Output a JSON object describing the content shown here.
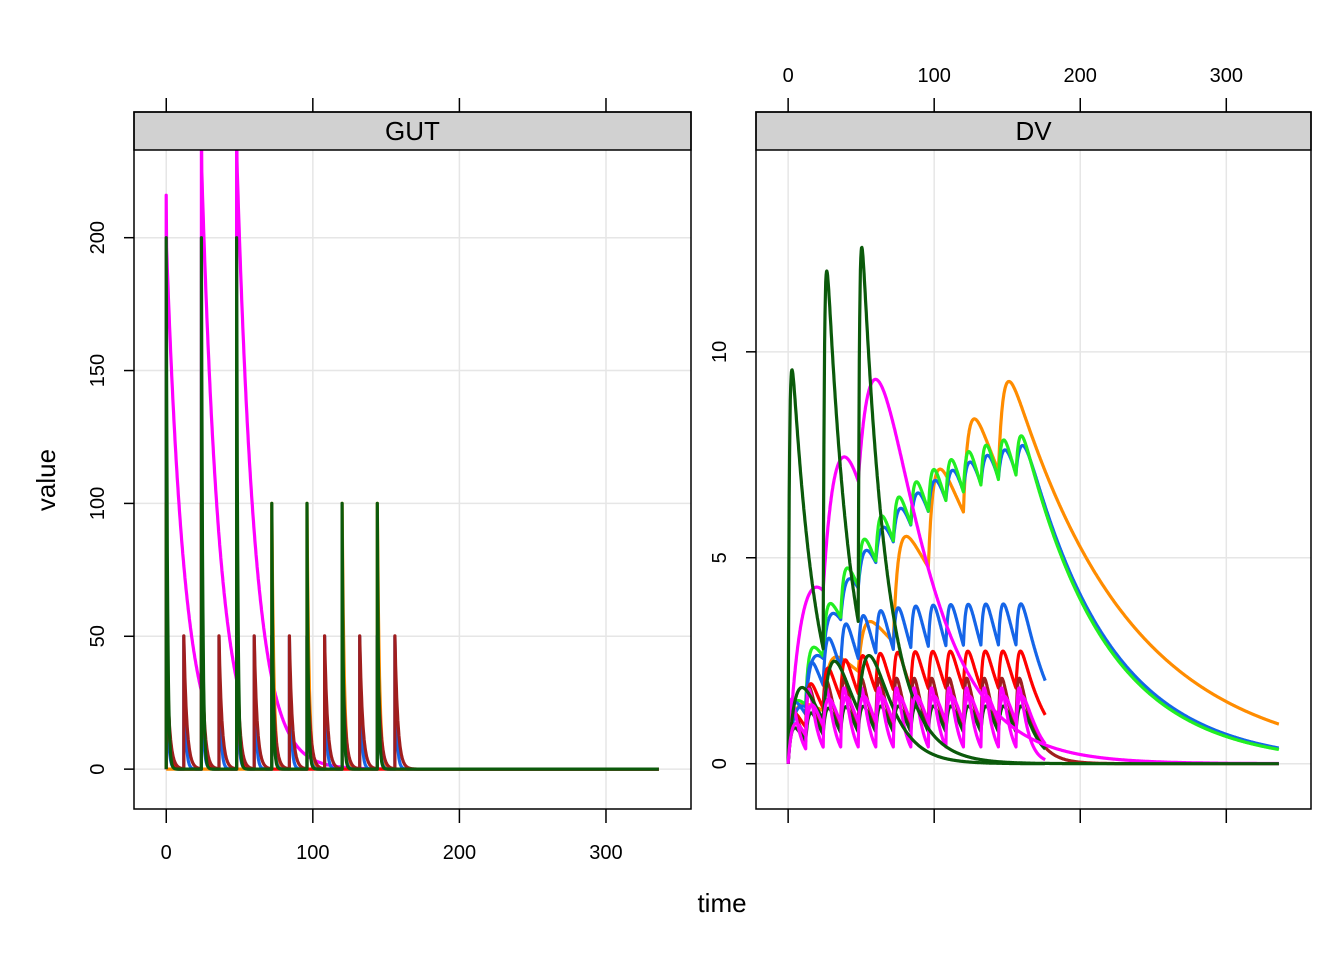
{
  "chart_data": {
    "type": "line",
    "xlabel": "time",
    "ylabel": "value",
    "series_colors": {
      "magenta": "#ff00ff",
      "dark_green": "#0b5a0b",
      "blue": "#1565e8",
      "orange": "#ff8c00",
      "red": "#ff0000",
      "green": "#22ee22",
      "brown": "#a01e1e"
    },
    "panels": [
      {
        "strip_label": "GUT",
        "xlim": [
          -22,
          358
        ],
        "ylim": [
          -15,
          233
        ],
        "x_ticks": [
          0,
          100,
          200,
          300
        ],
        "x_tick_labels": [
          "0",
          "100",
          "200",
          "300"
        ],
        "y_ticks": [
          0,
          50,
          100,
          150,
          200
        ],
        "y_tick_labels": [
          "0",
          "50",
          "100",
          "150",
          "200"
        ],
        "series": [
          {
            "color_key": "magenta",
            "kind": "gut",
            "dose_times": [
              0,
              24,
              48
            ],
            "amount": 200,
            "ka": 0.08,
            "peak_overshoot": 16,
            "end": 336
          },
          {
            "color_key": "orange",
            "kind": "gut",
            "dose_times": [
              72,
              96,
              120,
              144
            ],
            "amount": 100,
            "ka": 0.7,
            "end": 336
          },
          {
            "color_key": "blue",
            "kind": "gut",
            "dose_times": [
              0,
              12,
              24,
              36,
              48,
              60,
              72,
              84,
              96,
              108,
              120,
              132,
              144,
              156
            ],
            "amount": 50,
            "ka": 0.9,
            "end": 336
          },
          {
            "color_key": "red",
            "kind": "gut",
            "dose_times": [
              0,
              24,
              48
            ],
            "amount": 100,
            "ka": 0.9,
            "end": 336
          },
          {
            "color_key": "brown",
            "kind": "gut",
            "dose_times": [
              0,
              12,
              24,
              36,
              48,
              60,
              72,
              84,
              96,
              108,
              120,
              132,
              144,
              156
            ],
            "amount": 50,
            "ka": 0.5,
            "end": 336
          },
          {
            "color_key": "dark_green",
            "kind": "gut",
            "dose_times": [
              0,
              24,
              48,
              72,
              96,
              120,
              144
            ],
            "amount": [
              200,
              200,
              200,
              100,
              100,
              100,
              100
            ],
            "ka": 1.2,
            "end": 336
          }
        ]
      },
      {
        "strip_label": "DV",
        "xlim": [
          -22,
          358
        ],
        "ylim": [
          -1.1,
          14.9
        ],
        "x_ticks": [
          0,
          100,
          200,
          300
        ],
        "x_tick_labels": [
          "0",
          "100",
          "200",
          "300"
        ],
        "y_ticks": [
          0,
          5,
          10
        ],
        "y_tick_labels": [
          "0",
          "5",
          "10"
        ],
        "series": [
          {
            "color_key": "orange",
            "kind": "pk",
            "dose_times": [
              0,
              24,
              48,
              72,
              96,
              120,
              144
            ],
            "amount": [
              50,
              50,
              50,
              100,
              100,
              100,
              100
            ],
            "ka": 0.3,
            "ke": 0.0125,
            "V": 30,
            "end": 336
          },
          {
            "color_key": "blue",
            "kind": "pk",
            "dose_times": [
              0,
              12,
              24,
              36,
              48,
              60,
              72,
              84,
              96,
              108,
              120,
              132,
              144,
              156
            ],
            "amount": 45,
            "ka": 0.3,
            "ke": 0.0175,
            "V": 27,
            "end": 336
          },
          {
            "color_key": "green",
            "kind": "pk",
            "dose_times": [
              0,
              12,
              24,
              36,
              48,
              60,
              72,
              84,
              96,
              108,
              120,
              132,
              144,
              156
            ],
            "amount": 45,
            "ka": 0.5,
            "ke": 0.018,
            "V": 26,
            "end": 336
          },
          {
            "color_key": "blue",
            "kind": "pk",
            "dose_times": [
              0,
              12,
              24,
              36,
              48,
              60,
              72,
              84,
              96,
              108,
              120,
              132,
              144,
              156
            ],
            "amount": 45,
            "ka": 0.5,
            "ke": 0.045,
            "V": 24,
            "end": 176
          },
          {
            "color_key": "red",
            "kind": "pk",
            "dose_times": [
              0,
              12,
              24,
              36,
              48,
              60,
              72,
              84,
              96,
              108,
              120,
              132,
              144,
              156
            ],
            "amount": 45,
            "ka": 0.6,
            "ke": 0.055,
            "V": 29,
            "end": 176
          },
          {
            "color_key": "brown",
            "kind": "pk",
            "dose_times": [
              0,
              12,
              24,
              36,
              48,
              60,
              72,
              84,
              96,
              108,
              120,
              132,
              144,
              156
            ],
            "amount": 45,
            "ka": 0.9,
            "ke": 0.1,
            "V": 25,
            "end": 336
          },
          {
            "color_key": "dark_green",
            "kind": "pk",
            "dose_times": [
              0,
              12,
              24,
              36,
              48,
              60,
              72,
              84,
              96,
              108,
              120,
              132,
              144,
              156
            ],
            "amount": 45,
            "ka": 0.4,
            "ke": 0.1,
            "V": 33,
            "end": 176
          },
          {
            "color_key": "magenta",
            "kind": "pk",
            "dose_times": [
              0,
              24,
              48
            ],
            "amount": 200,
            "ka": 0.08,
            "ke": 0.03,
            "V": 26,
            "end": 336
          },
          {
            "color_key": "magenta",
            "kind": "pk",
            "dose_times": [
              0,
              12,
              24,
              36,
              48,
              60,
              72,
              84,
              96,
              108,
              120,
              132,
              144,
              156
            ],
            "amount": 45,
            "ka": 0.8,
            "ke": 0.18,
            "V": 19,
            "end": 176
          },
          {
            "color_key": "dark_green",
            "kind": "pk",
            "dose_times": [
              0,
              24,
              48
            ],
            "amount": 200,
            "ka": 1.2,
            "ke": 0.06,
            "V": 18,
            "end": 336
          },
          {
            "color_key": "dark_green",
            "kind": "pk",
            "dose_times": [
              0,
              24,
              48
            ],
            "amount": 100,
            "ka": 0.15,
            "ke": 0.07,
            "V": 28,
            "end": 176
          },
          {
            "color_key": "magenta",
            "kind": "pk",
            "dose_times": [
              0,
              12,
              24,
              36,
              48,
              60,
              72,
              84,
              96,
              108,
              120,
              132,
              144,
              156
            ],
            "amount": 45,
            "ka": 0.3,
            "ke": 0.1,
            "V": 27,
            "end": 176
          }
        ]
      }
    ]
  }
}
